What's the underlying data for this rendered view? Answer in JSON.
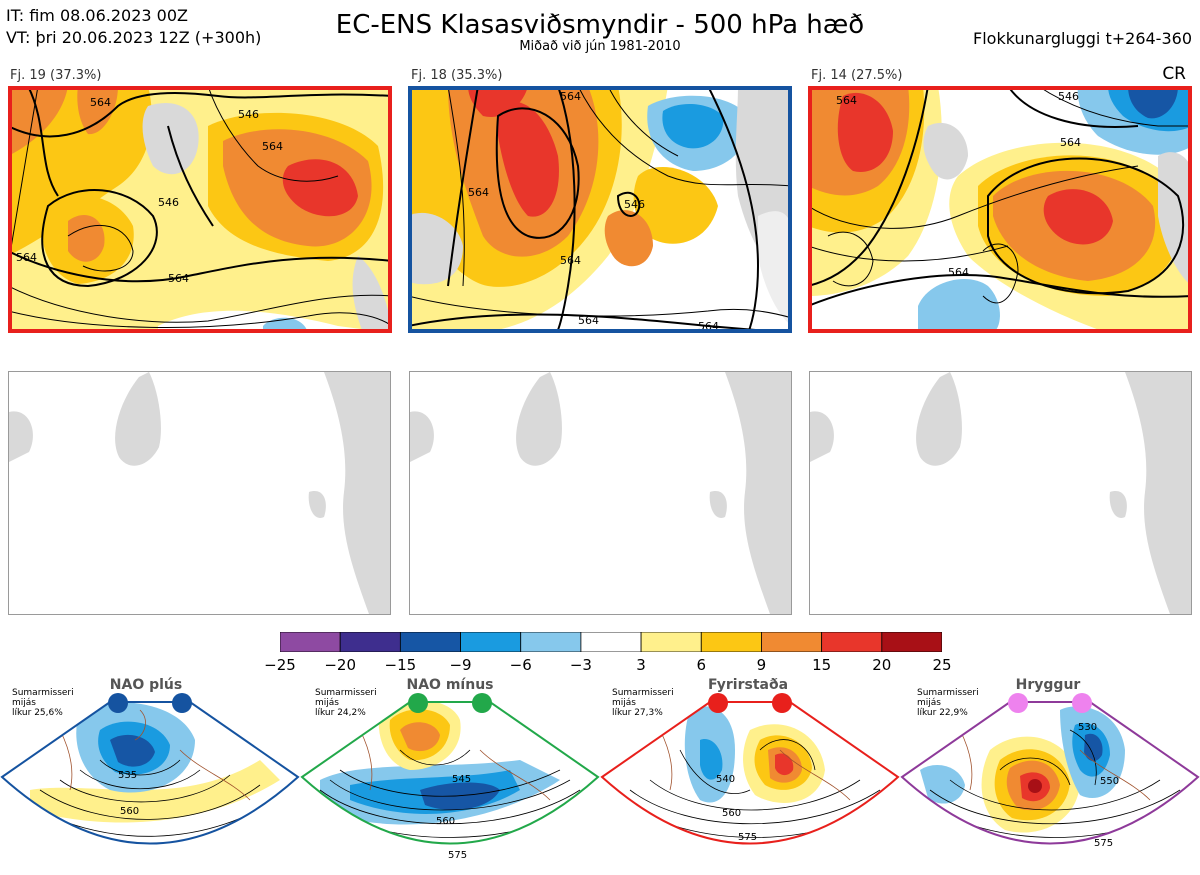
{
  "header": {
    "init_line": "IT: fim 08.06.2023 00Z",
    "valid_line": "VT: þri 20.06.2023 12Z  (+300h)",
    "title": "EC-ENS Klasasviðsmyndir - 500 hPa hæð",
    "subtitle": "Miðað við jún 1981-2010",
    "window": "Flokkunargluggi t+264-360"
  },
  "panels": [
    {
      "label": "Fj. 19 (37.3%)",
      "frame_color": "#e8201c",
      "contours": [
        "546",
        "564",
        "546",
        "564",
        "564",
        "564"
      ]
    },
    {
      "label": "Fj. 18 (35.3%)",
      "frame_color": "#1553a0",
      "contours": [
        "564",
        "564",
        "564",
        "546",
        "564",
        "564"
      ]
    },
    {
      "label": "Fj. 14 (27.5%)",
      "frame_color": "#e8201c",
      "contours": [
        "564",
        "546",
        "564",
        "564"
      ],
      "tag": "CR"
    }
  ],
  "colorbar": {
    "colors": [
      "#8e4aa2",
      "#3e2e8e",
      "#1656a5",
      "#1a9be0",
      "#86c8ec",
      "#ffffff",
      "#fff08c",
      "#fcc714",
      "#f08a32",
      "#e8362b",
      "#a81016"
    ],
    "ticks": [
      "−25",
      "−20",
      "−15",
      "−9",
      "−6",
      "−3",
      "3",
      "6",
      "9",
      "15",
      "20",
      "25"
    ]
  },
  "regimes": [
    {
      "name": "NAO plús",
      "note": [
        "Sumarmisseri",
        "mijás",
        "líkur 25,6%"
      ],
      "dot_color": "#1553a0",
      "outline": "#1553a0",
      "contours": [
        "535",
        "560"
      ]
    },
    {
      "name": "NAO mínus",
      "note": [
        "Sumarmisseri",
        "mijás",
        "líkur 24,2%"
      ],
      "dot_color": "#22a84a",
      "outline": "#22a84a",
      "contours": [
        "545",
        "560",
        "575"
      ]
    },
    {
      "name": "Fyrirstaða",
      "note": [
        "Sumarmisseri",
        "mijás",
        "líkur 27,3%"
      ],
      "dot_color": "#e8201c",
      "outline": "#e8201c",
      "contours": [
        "540",
        "560",
        "575"
      ]
    },
    {
      "name": "Hryggur",
      "note": [
        "Sumarmisseri",
        "mijás",
        "líkur 22,9%"
      ],
      "dot_color": "#ee82ee",
      "outline": "#8e3a9a",
      "contours": [
        "530",
        "550",
        "575"
      ]
    }
  ]
}
